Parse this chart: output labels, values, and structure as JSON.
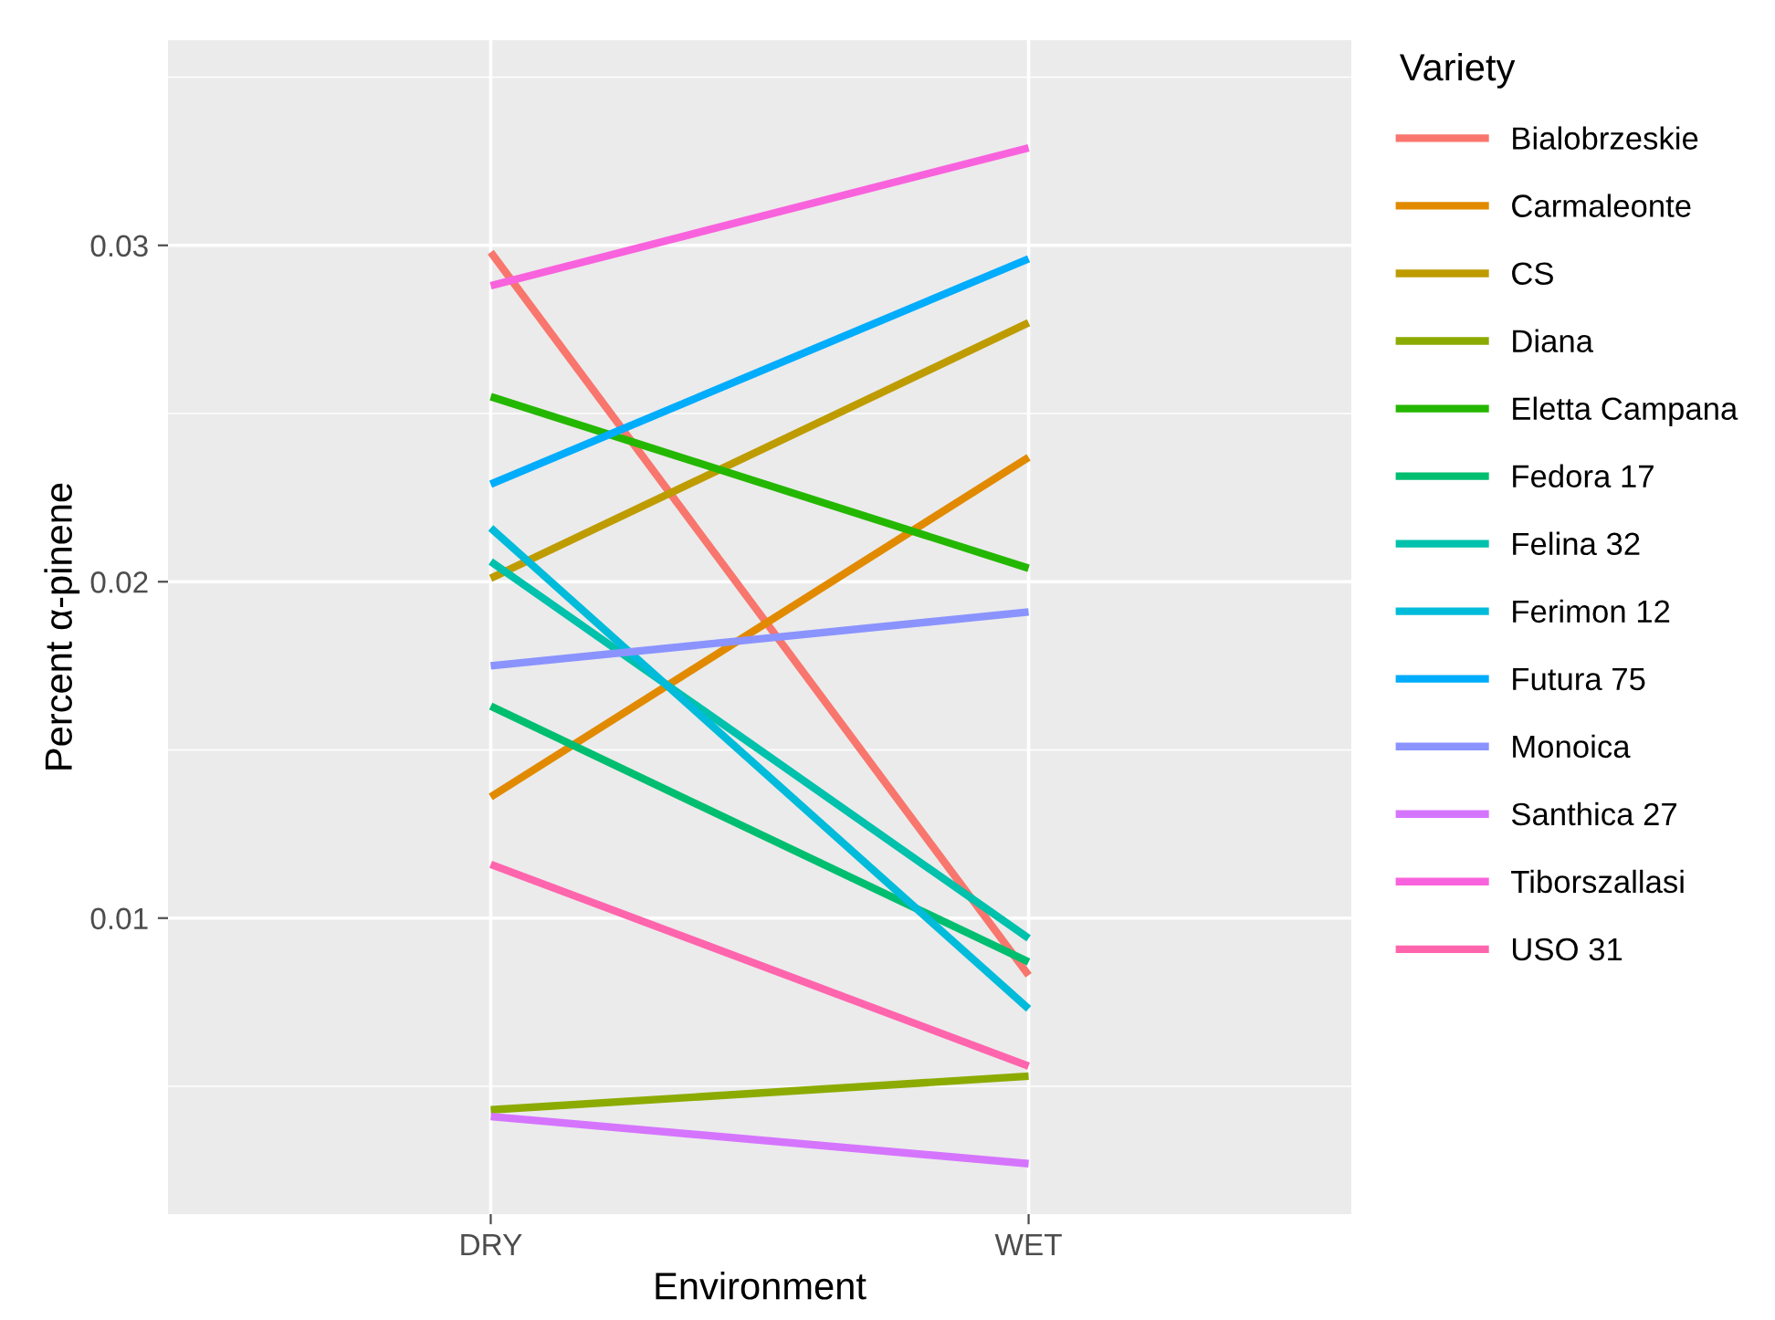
{
  "chart_data": {
    "type": "line",
    "xlabel": "Environment",
    "ylabel": "Percent α-pinene",
    "legend_title": "Variety",
    "legend": "right",
    "categories": [
      "DRY",
      "WET"
    ],
    "series": [
      {
        "name": "Bialobrzeskie",
        "color": "#f8766d",
        "values": [
          0.0298,
          0.0083
        ]
      },
      {
        "name": "Carmaleonte",
        "color": "#e18a00",
        "values": [
          0.0136,
          0.0237
        ]
      },
      {
        "name": "CS",
        "color": "#be9c00",
        "values": [
          0.0201,
          0.0277
        ]
      },
      {
        "name": "Diana",
        "color": "#8cab00",
        "values": [
          0.0043,
          0.0053
        ]
      },
      {
        "name": "Eletta Campana",
        "color": "#24b700",
        "values": [
          0.0255,
          0.0204
        ]
      },
      {
        "name": "Fedora 17",
        "color": "#00be70",
        "values": [
          0.0163,
          0.0087
        ]
      },
      {
        "name": "Felina 32",
        "color": "#00c1ab",
        "values": [
          0.0206,
          0.0094
        ]
      },
      {
        "name": "Ferimon 12",
        "color": "#00bbda",
        "values": [
          0.0216,
          0.0073
        ]
      },
      {
        "name": "Futura 75",
        "color": "#00acfc",
        "values": [
          0.0229,
          0.0296
        ]
      },
      {
        "name": "Monoica",
        "color": "#8b93ff",
        "values": [
          0.0175,
          0.0191
        ]
      },
      {
        "name": "Santhica 27",
        "color": "#d575fe",
        "values": [
          0.0041,
          0.0027
        ]
      },
      {
        "name": "Tiborszallasi",
        "color": "#f962dd",
        "values": [
          0.0288,
          0.0329
        ]
      },
      {
        "name": "USO 31",
        "color": "#ff65ac",
        "values": [
          0.0116,
          0.0056
        ]
      }
    ],
    "ylim": [
      0.0012,
      0.0361
    ],
    "yticks": [
      0.01,
      0.02,
      0.03
    ],
    "grid": true,
    "marker": "none",
    "line_style": "solid"
  }
}
